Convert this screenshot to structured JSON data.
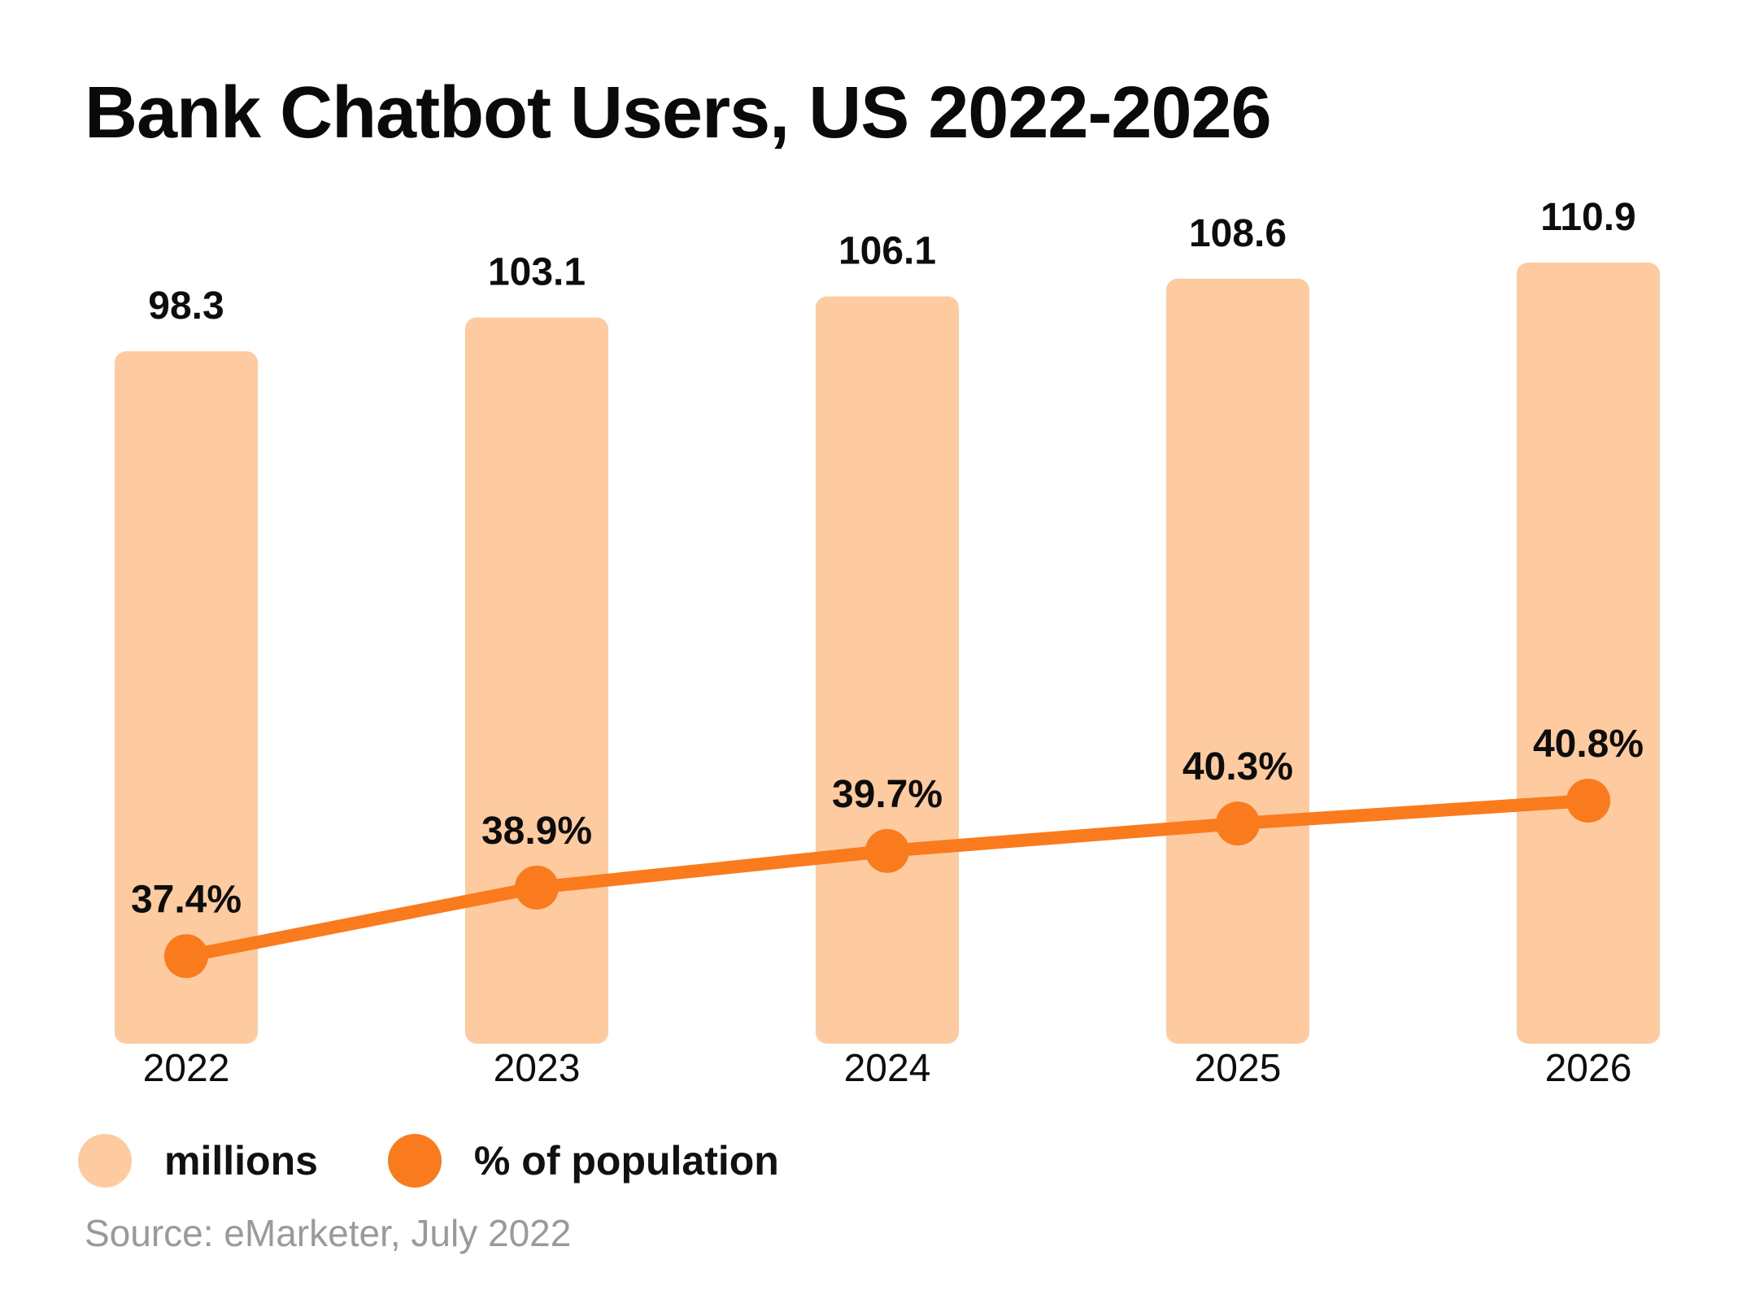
{
  "chart_data": {
    "type": "bar+line",
    "title": "Bank Chatbot Users, US 2022-2026",
    "categories": [
      "2022",
      "2023",
      "2024",
      "2025",
      "2026"
    ],
    "series": [
      {
        "name": "millions",
        "kind": "bar",
        "values": [
          98.3,
          103.1,
          106.1,
          108.6,
          110.9
        ],
        "labels": [
          "98.3",
          "103.1",
          "106.1",
          "108.6",
          "110.9"
        ],
        "color": "#FECBA1"
      },
      {
        "name": "% of population",
        "kind": "line",
        "values": [
          37.4,
          38.9,
          39.7,
          40.3,
          40.8
        ],
        "labels": [
          "37.4%",
          "38.9%",
          "39.7%",
          "40.3%",
          "40.8%"
        ],
        "color": "#FA7A1E"
      }
    ],
    "bar_axis_range": [
      0,
      110.9
    ],
    "line_axis_range": [
      32,
      48
    ],
    "gridlines": false,
    "legend_position": "bottom-left",
    "source": "Source: eMarketer, July 2022"
  }
}
